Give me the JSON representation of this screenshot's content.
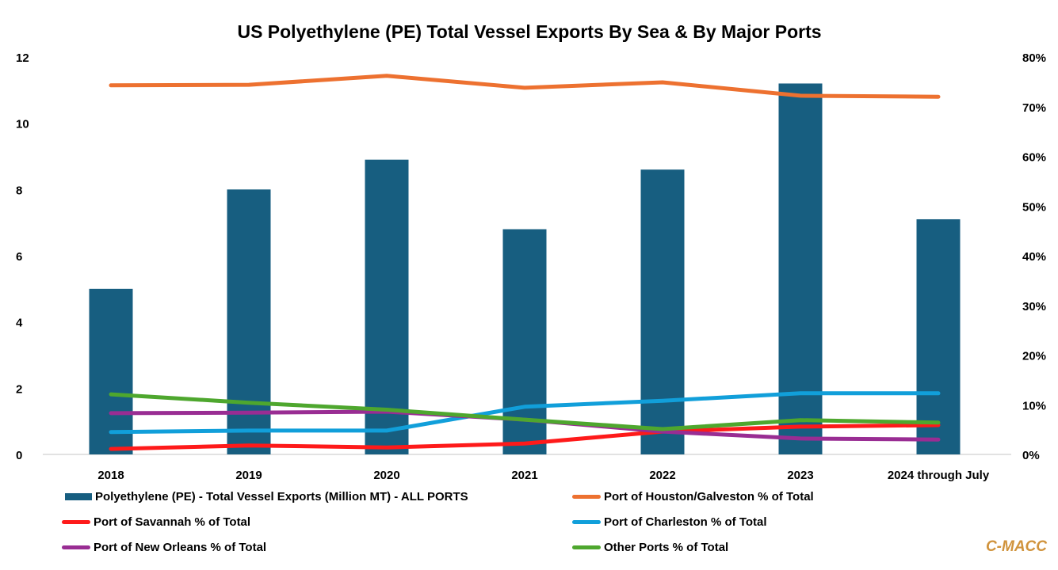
{
  "chart_data": {
    "type": "bar+line",
    "title": "US Polyethylene (PE) Total Vessel Exports By Sea & By Major Ports",
    "categories": [
      "2018",
      "2019",
      "2020",
      "2021",
      "2022",
      "2023",
      "2024 through July"
    ],
    "left_axis": {
      "ylim": [
        0,
        12
      ],
      "ticks": [
        "0",
        "2",
        "4",
        "6",
        "8",
        "10",
        "12"
      ],
      "tick_values": [
        0,
        2,
        4,
        6,
        8,
        10,
        12
      ]
    },
    "right_axis": {
      "ylim": [
        0,
        80
      ],
      "ticks": [
        "0%",
        "10%",
        "20%",
        "30%",
        "40%",
        "50%",
        "60%",
        "70%",
        "80%"
      ],
      "tick_values": [
        0,
        10,
        20,
        30,
        40,
        50,
        60,
        70,
        80
      ]
    },
    "grid": false,
    "legend_position": "bottom",
    "bars": {
      "name": "Polyethylene (PE) - Total Vessel Exports (Million MT) - ALL PORTS",
      "color": "#175e80",
      "axis": "left",
      "values": [
        5.0,
        8.0,
        8.9,
        6.8,
        8.6,
        11.2,
        7.1
      ]
    },
    "series": [
      {
        "name": "Port of Houston/Galveston % of Total",
        "color": "#ed7130",
        "axis": "right",
        "values": [
          74.3,
          74.4,
          76.2,
          73.8,
          74.9,
          72.2,
          72.0
        ]
      },
      {
        "name": "Port of Savannah % of Total",
        "color": "#fe1a1a",
        "axis": "right",
        "values": [
          1.1,
          1.8,
          1.4,
          2.2,
          4.6,
          5.6,
          5.9
        ]
      },
      {
        "name": "Port of Charleston % of Total",
        "color": "#119fda",
        "axis": "right",
        "values": [
          4.5,
          4.8,
          4.8,
          9.6,
          10.8,
          12.3,
          12.3
        ]
      },
      {
        "name": "Port of New Orleans % of Total",
        "color": "#992d93",
        "axis": "right",
        "values": [
          8.3,
          8.4,
          8.6,
          7.0,
          4.6,
          3.2,
          3.0
        ]
      },
      {
        "name": "Other Ports % of Total",
        "color": "#4ea72e",
        "axis": "right",
        "values": [
          12.1,
          10.4,
          9.0,
          7.0,
          5.1,
          6.9,
          6.4
        ]
      }
    ]
  },
  "legend": {
    "bars": "Polyethylene (PE) - Total Vessel Exports (Million MT) - ALL PORTS",
    "houston": "Port of Houston/Galveston % of Total",
    "savannah": "Port of Savannah % of Total",
    "charleston": "Port of Charleston % of Total",
    "new_orleans": "Port of New Orleans % of Total",
    "other": "Other Ports % of Total"
  },
  "brand": "C-MACC"
}
